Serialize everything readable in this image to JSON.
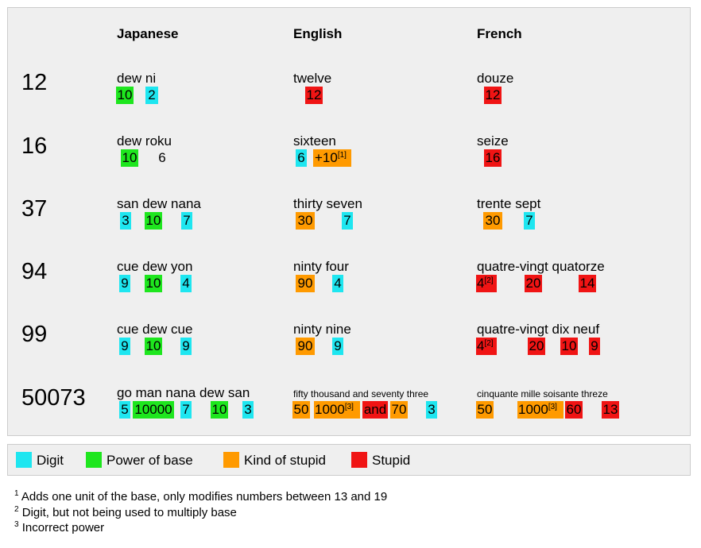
{
  "columns": {
    "japanese": "Japanese",
    "english": "English",
    "french": "French"
  },
  "rows": [
    {
      "number": "12",
      "japanese": {
        "words": "dew ni",
        "tokens": [
          "10",
          "2"
        ]
      },
      "english": {
        "words": "twelve",
        "tokens": [
          "12"
        ]
      },
      "french": {
        "words": "douze",
        "tokens": [
          "12"
        ]
      }
    },
    {
      "number": "16",
      "japanese": {
        "words": "dew roku",
        "tokens": [
          "10",
          "6"
        ]
      },
      "english": {
        "words": "sixteen",
        "tokens": [
          "6",
          "+10"
        ],
        "note_ref": "[1]"
      },
      "french": {
        "words": "seize",
        "tokens": [
          "16"
        ]
      }
    },
    {
      "number": "37",
      "japanese": {
        "words": "san dew nana",
        "tokens": [
          "3",
          "10",
          "7"
        ]
      },
      "english": {
        "words": "thirty seven",
        "tokens": [
          "30",
          "7"
        ]
      },
      "french": {
        "words": "trente sept",
        "tokens": [
          "30",
          "7"
        ]
      }
    },
    {
      "number": "94",
      "japanese": {
        "words": "cue dew yon",
        "tokens": [
          "9",
          "10",
          "4"
        ]
      },
      "english": {
        "words": "ninty four",
        "tokens": [
          "90",
          "4"
        ]
      },
      "french": {
        "words": "quatre-vingt quatorze",
        "tokens": [
          "4",
          "20",
          "14"
        ],
        "note_ref": "[2]"
      }
    },
    {
      "number": "99",
      "japanese": {
        "words": "cue dew cue",
        "tokens": [
          "9",
          "10",
          "9"
        ]
      },
      "english": {
        "words": "ninty nine",
        "tokens": [
          "90",
          "9"
        ]
      },
      "french": {
        "words": "quatre-vingt dix neuf",
        "tokens": [
          "4",
          "20",
          "10",
          "9"
        ],
        "note_ref": "[2]"
      }
    },
    {
      "number": "50073",
      "japanese": {
        "words": "go man nana dew san",
        "tokens": [
          "5",
          "10000",
          "7",
          "10",
          "3"
        ]
      },
      "english": {
        "words": "fifty thousand and seventy three",
        "tokens": [
          "50",
          "1000",
          "and",
          "70",
          "3"
        ],
        "note_ref": "[3]"
      },
      "french": {
        "words": "cinquante mille soisante threze",
        "tokens": [
          "50",
          "1000",
          "60",
          "13"
        ],
        "note_ref": "[3]"
      }
    }
  ],
  "colors": {
    "digit": "#1ee6f0",
    "power": "#1ee61e",
    "kind": "#ff9a00",
    "stupid": "#f01414"
  },
  "legend": {
    "digit": "Digit",
    "power": "Power of base",
    "kind": "Kind of stupid",
    "stupid": "Stupid"
  },
  "footnotes": [
    {
      "mark": "1",
      "text": "Adds one unit of the base, only modifies numbers between 13 and 19"
    },
    {
      "mark": "2",
      "text": "Digit, but not being used to multiply base"
    },
    {
      "mark": "3",
      "text": "Incorrect power"
    }
  ]
}
